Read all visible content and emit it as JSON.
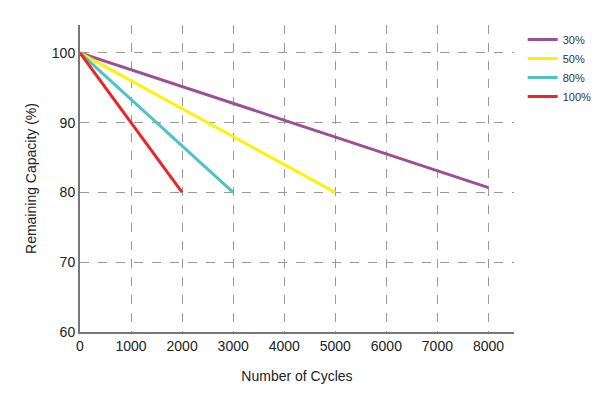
{
  "chart_data": {
    "type": "line",
    "x_label": "Number of Cycles",
    "y_label": "Remaining Capacity (%)",
    "series": [
      {
        "name": "30%",
        "color": "#9b4f96",
        "x": [
          0,
          8000
        ],
        "values": [
          100,
          80.7
        ]
      },
      {
        "name": "50%",
        "color": "#fff200",
        "x": [
          0,
          5000
        ],
        "values": [
          100,
          80
        ]
      },
      {
        "name": "80%",
        "color": "#4fc3c8",
        "x": [
          0,
          3000
        ],
        "values": [
          100,
          80
        ]
      },
      {
        "name": "100%",
        "color": "#e8262b",
        "x": [
          0,
          2000
        ],
        "values": [
          100,
          80
        ]
      }
    ],
    "xlim": [
      0,
      8500
    ],
    "xticks": [
      0,
      1000,
      2000,
      3000,
      4000,
      5000,
      6000,
      7000,
      8000
    ],
    "ylim": [
      60,
      104
    ],
    "yticks": [
      60,
      70,
      80,
      90,
      100
    ],
    "grid": true,
    "legend": "top right"
  }
}
